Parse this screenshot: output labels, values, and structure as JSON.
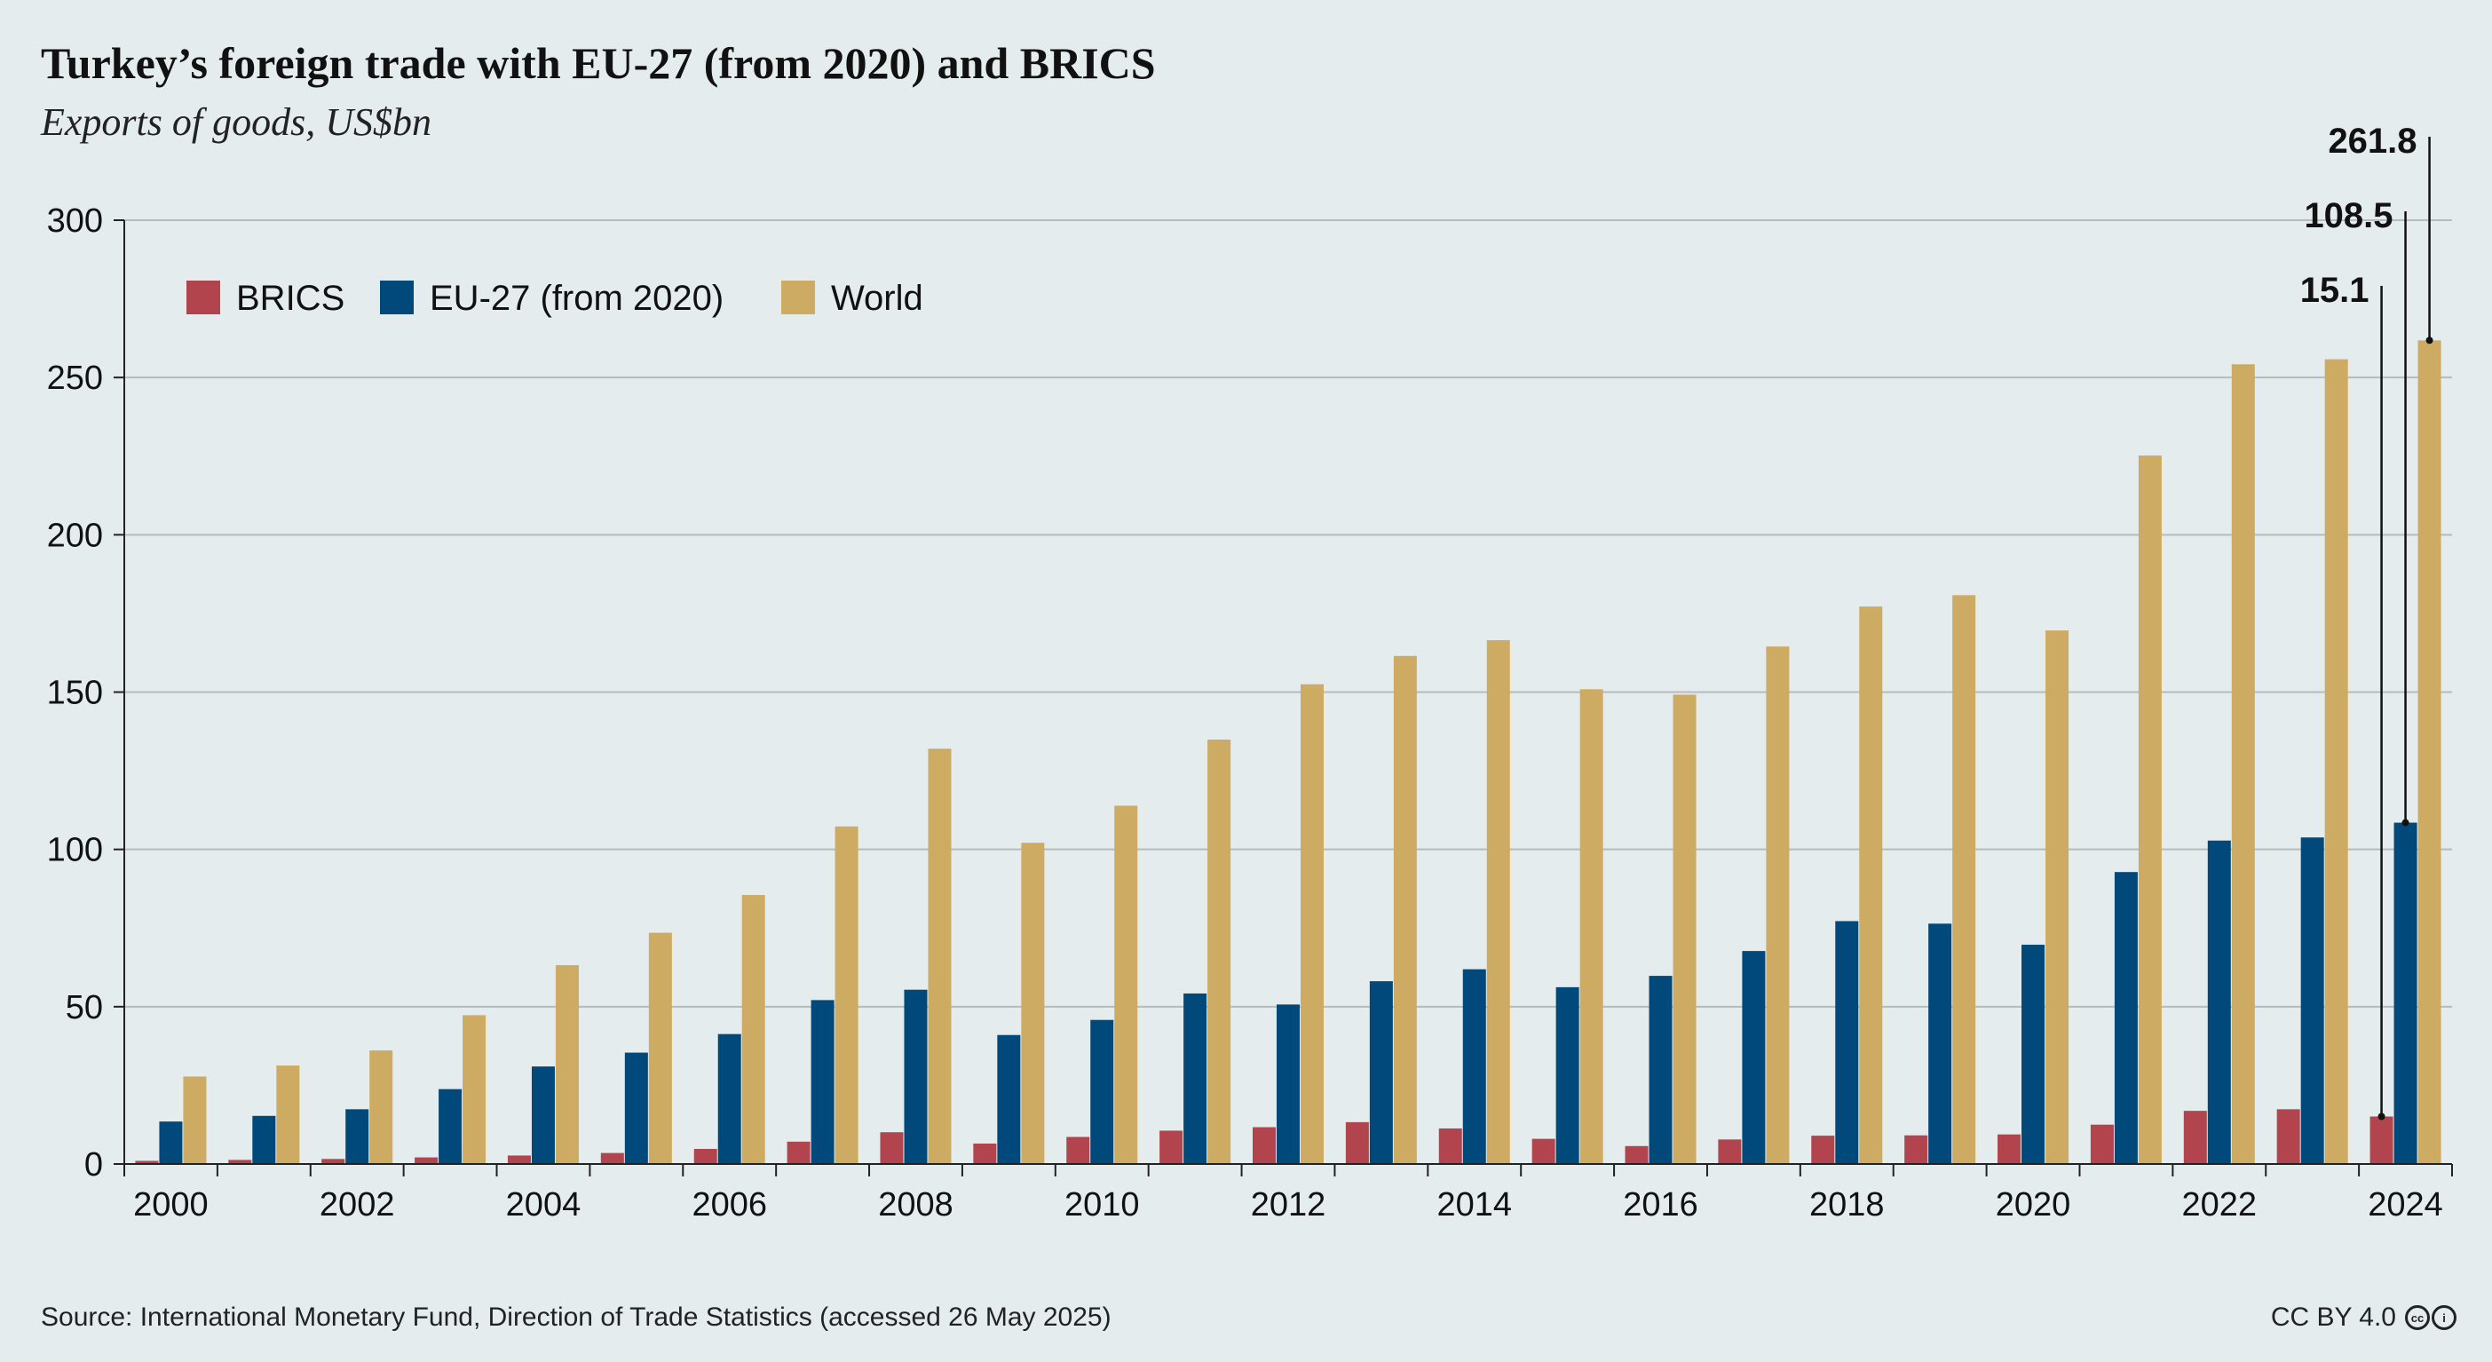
{
  "title": "Turkey’s foreign trade with EU-27 (from 2020) and BRICS",
  "subtitle": "Exports of goods, US$bn",
  "source": "Source: International Monetary Fund, Direction of Trade Statistics (accessed 26 May 2025)",
  "license": "CC BY 4.0",
  "license_icons": [
    "cc-icon",
    "by-icon"
  ],
  "colors": {
    "BRICS": "#b2444d",
    "EU-27 (from 2020)": "#00497a",
    "World": "#ceab62",
    "background": "#e4ecee"
  },
  "chart_data": {
    "type": "bar",
    "title": "Turkey’s foreign trade with EU-27 (from 2020) and BRICS",
    "subtitle": "Exports of goods, US$bn",
    "xlabel": "",
    "ylabel": "",
    "ylim": [
      0,
      300
    ],
    "yticks": [
      0,
      50,
      100,
      150,
      200,
      250,
      300
    ],
    "grid": true,
    "legend_position": "top-left",
    "categories": [
      "2000",
      "2001",
      "2002",
      "2003",
      "2004",
      "2005",
      "2006",
      "2007",
      "2008",
      "2009",
      "2010",
      "2011",
      "2012",
      "2013",
      "2014",
      "2015",
      "2016",
      "2017",
      "2018",
      "2019",
      "2020",
      "2021",
      "2022",
      "2023",
      "2024"
    ],
    "xtick_labels": [
      "2000",
      "2002",
      "2004",
      "2006",
      "2008",
      "2010",
      "2012",
      "2014",
      "2016",
      "2018",
      "2020",
      "2022",
      "2024"
    ],
    "series": [
      {
        "name": "BRICS",
        "color": "#b2444d",
        "values": [
          1.0,
          1.3,
          1.6,
          2.1,
          2.7,
          3.5,
          4.8,
          7.1,
          10.1,
          6.5,
          8.6,
          10.6,
          11.7,
          13.3,
          11.3,
          8.0,
          5.7,
          7.8,
          9.0,
          9.1,
          9.4,
          12.5,
          16.9,
          17.4,
          15.1
        ]
      },
      {
        "name": "EU-27 (from 2020)",
        "color": "#00497a",
        "values": [
          13.5,
          15.3,
          17.4,
          23.8,
          31.0,
          35.4,
          41.3,
          52.1,
          55.4,
          41.0,
          45.8,
          54.2,
          50.7,
          58.1,
          61.9,
          56.2,
          59.8,
          67.7,
          77.2,
          76.4,
          69.7,
          92.8,
          102.8,
          103.8,
          108.5
        ]
      },
      {
        "name": "World",
        "color": "#ceab62",
        "values": [
          27.8,
          31.3,
          36.1,
          47.3,
          63.2,
          73.5,
          85.5,
          107.3,
          132.0,
          102.1,
          113.9,
          134.9,
          152.5,
          161.5,
          166.5,
          150.9,
          149.2,
          164.5,
          177.2,
          180.8,
          169.6,
          225.2,
          254.2,
          255.8,
          261.8
        ]
      }
    ],
    "annotations": [
      "261.8",
      "108.5",
      "15.1"
    ]
  }
}
